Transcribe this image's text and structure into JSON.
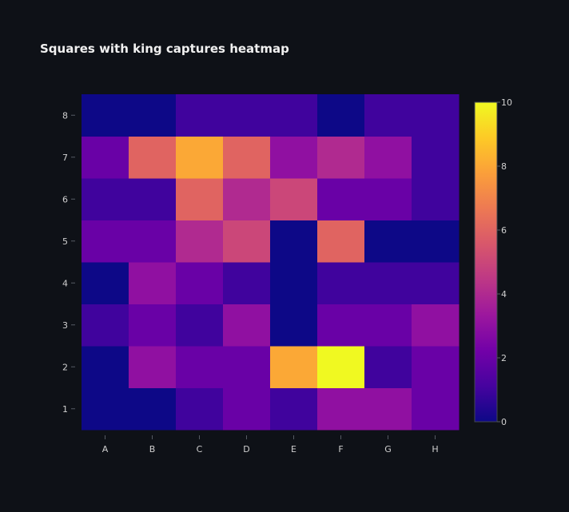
{
  "chart_data": {
    "type": "heatmap",
    "title": "Squares with king captures heatmap",
    "xlabel": "",
    "ylabel": "",
    "x": [
      "A",
      "B",
      "C",
      "D",
      "E",
      "F",
      "G",
      "H"
    ],
    "y": [
      "1",
      "2",
      "3",
      "4",
      "5",
      "6",
      "7",
      "8"
    ],
    "z": [
      [
        0,
        0,
        1,
        2,
        1,
        3,
        3,
        2
      ],
      [
        0,
        3,
        2,
        2,
        8,
        10,
        1,
        2
      ],
      [
        1,
        2,
        1,
        3,
        0,
        2,
        2,
        3
      ],
      [
        0,
        3,
        2,
        1,
        0,
        1,
        1,
        1
      ],
      [
        2,
        2,
        4,
        5,
        0,
        6,
        0,
        0
      ],
      [
        1,
        1,
        6,
        4,
        5,
        2,
        2,
        1
      ],
      [
        2,
        6,
        8,
        6,
        3,
        4,
        3,
        1
      ],
      [
        0,
        0,
        1,
        1,
        1,
        0,
        1,
        1
      ]
    ],
    "zrange": [
      0,
      10
    ],
    "colorbar_ticks": [
      0,
      2,
      4,
      6,
      8,
      10
    ],
    "colorscale": "plasma",
    "grid": false,
    "legend": "colorbar-right"
  },
  "colors": {
    "background": "#0e1117",
    "text": "#d0d0d0",
    "title": "#f0f0f0"
  }
}
